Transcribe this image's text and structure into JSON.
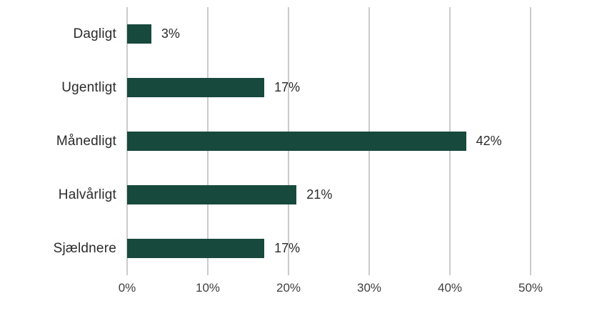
{
  "chart_data": {
    "type": "bar",
    "orientation": "horizontal",
    "categories": [
      "Dagligt",
      "Ugentligt",
      "Månedligt",
      "Halvårligt",
      "Sjældnere"
    ],
    "values": [
      3,
      17,
      42,
      21,
      17
    ],
    "value_labels": [
      "3%",
      "17%",
      "42%",
      "21%",
      "17%"
    ],
    "x_ticks": [
      0,
      10,
      20,
      30,
      40,
      50
    ],
    "x_tick_labels": [
      "0%",
      "10%",
      "20%",
      "30%",
      "40%",
      "50%"
    ],
    "xlim": [
      0,
      50
    ],
    "grid": true,
    "legend": false,
    "title": "",
    "xlabel": "",
    "ylabel": "",
    "colors": {
      "bar": "#17493d",
      "gridline": "#cbcbcb",
      "category_text": "#2b2b2b",
      "value_text": "#2b2b2b",
      "tick_text": "#3f3f3f",
      "background": "#ffffff"
    }
  }
}
